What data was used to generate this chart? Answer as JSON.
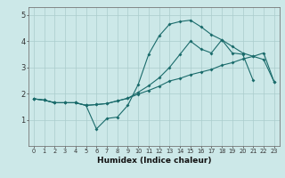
{
  "xlabel": "Humidex (Indice chaleur)",
  "ylabel": "",
  "xlim": [
    -0.5,
    23.5
  ],
  "ylim": [
    0,
    5.3
  ],
  "bg_color": "#cce8e8",
  "grid_color": "#aacccc",
  "line_color": "#1a6b6b",
  "line1_x": [
    0,
    1,
    2,
    3,
    4,
    5,
    6,
    7,
    8,
    9,
    10,
    11,
    12,
    13,
    14,
    15,
    16,
    17,
    18,
    19,
    20,
    21
  ],
  "line1_y": [
    1.8,
    1.75,
    1.65,
    1.65,
    1.65,
    1.55,
    0.65,
    1.05,
    1.1,
    1.55,
    2.35,
    3.5,
    4.2,
    4.65,
    4.75,
    4.8,
    4.55,
    4.25,
    4.05,
    3.55,
    3.5,
    2.5
  ],
  "line2_x": [
    0,
    1,
    2,
    3,
    4,
    5,
    6,
    7,
    8,
    9,
    10,
    11,
    12,
    13,
    14,
    15,
    16,
    17,
    18,
    19,
    20,
    21,
    22,
    23
  ],
  "line2_y": [
    1.8,
    1.75,
    1.65,
    1.65,
    1.65,
    1.55,
    1.58,
    1.62,
    1.72,
    1.82,
    1.98,
    2.12,
    2.28,
    2.48,
    2.58,
    2.72,
    2.82,
    2.92,
    3.08,
    3.18,
    3.32,
    3.42,
    3.55,
    2.45
  ],
  "line3_x": [
    0,
    1,
    2,
    3,
    4,
    5,
    6,
    7,
    8,
    9,
    10,
    11,
    12,
    13,
    14,
    15,
    16,
    17,
    18,
    19,
    20,
    21,
    22,
    23
  ],
  "line3_y": [
    1.8,
    1.75,
    1.65,
    1.65,
    1.65,
    1.55,
    1.58,
    1.62,
    1.72,
    1.82,
    2.05,
    2.3,
    2.6,
    3.0,
    3.5,
    4.0,
    3.7,
    3.55,
    4.05,
    3.8,
    3.55,
    3.42,
    3.3,
    2.45
  ],
  "yticks": [
    1,
    2,
    3,
    4,
    5
  ],
  "xticks": [
    0,
    1,
    2,
    3,
    4,
    5,
    6,
    7,
    8,
    9,
    10,
    11,
    12,
    13,
    14,
    15,
    16,
    17,
    18,
    19,
    20,
    21,
    22,
    23
  ]
}
